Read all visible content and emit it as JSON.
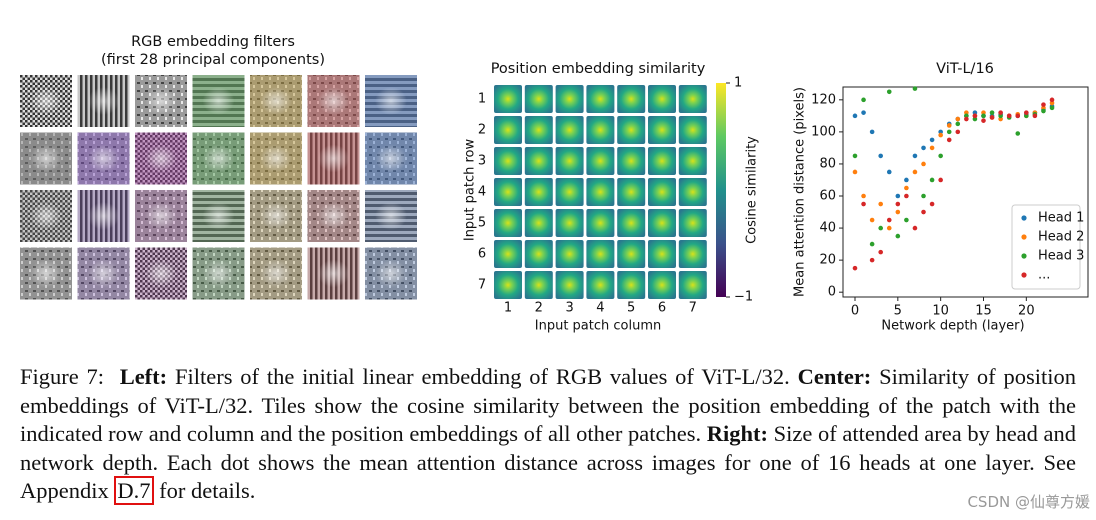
{
  "left_panel": {
    "title_lines": [
      "RGB embedding filters",
      "(first 28 principal components)"
    ]
  },
  "center_panel": {
    "title": "Position embedding similarity",
    "y_label": "Input patch row",
    "x_label": "Input patch column",
    "rows": [
      1,
      2,
      3,
      4,
      5,
      6,
      7
    ],
    "columns": [
      1,
      2,
      3,
      4,
      5,
      6,
      7
    ],
    "colorbar": {
      "label": "Cosine similarity",
      "lim": [
        -1,
        1
      ],
      "ticks": [
        1,
        {
          "value": -1,
          "label": "−1"
        }
      ]
    }
  },
  "chart_data": {
    "type": "scatter",
    "title": "ViT-L/16",
    "x_label": "Network depth (layer)",
    "y_label": "Mean attention distance (pixels)",
    "x": [
      0,
      1,
      2,
      3,
      4,
      5,
      6,
      7,
      8,
      9,
      10,
      11,
      12,
      13,
      14,
      15,
      16,
      17,
      18,
      19,
      20,
      21,
      22,
      23
    ],
    "series": [
      {
        "name": "Head 1",
        "color": "#1f77b4",
        "values": [
          110,
          112,
          100,
          85,
          75,
          60,
          70,
          85,
          90,
          95,
          100,
          105,
          108,
          110,
          112,
          110,
          110,
          111,
          110,
          110,
          111,
          112,
          114,
          116
        ]
      },
      {
        "name": "Head 2",
        "color": "#ff7f0e",
        "values": [
          75,
          60,
          45,
          55,
          40,
          50,
          65,
          75,
          80,
          90,
          98,
          104,
          108,
          112,
          110,
          112,
          109,
          108,
          110,
          111,
          110,
          112,
          115,
          118
        ]
      },
      {
        "name": "Head 3",
        "color": "#2ca02c",
        "values": [
          85,
          120,
          30,
          40,
          125,
          35,
          45,
          127,
          60,
          70,
          85,
          100,
          105,
          110,
          108,
          110,
          112,
          110,
          109,
          99,
          110,
          111,
          113,
          115
        ]
      },
      {
        "name": "...",
        "color": "#d62728",
        "values": [
          15,
          55,
          20,
          25,
          45,
          55,
          60,
          40,
          50,
          55,
          70,
          95,
          100,
          108,
          110,
          107,
          109,
          112,
          110,
          110,
          112,
          110,
          117,
          120
        ]
      }
    ],
    "xlim": [
      -1.4,
      27.2
    ],
    "ylim": [
      -3,
      128
    ],
    "xticks": [
      0,
      5,
      10,
      15,
      20
    ],
    "yticks": [
      0,
      20,
      40,
      60,
      80,
      100,
      120
    ],
    "legend": "lower right",
    "grid": false
  },
  "caption": {
    "segments": [
      {
        "text": "Figure 7:"
      },
      {
        "text": "Left:",
        "bold": true
      },
      {
        "text": "Filters of the initial linear embedding of RGB values of ViT-L/32."
      },
      {
        "text": "Center:",
        "bold": true
      },
      {
        "text": "Similarity of position embeddings of ViT-L/32. Tiles show the cosine similarity between the position embedding of the patch with the indicated row and column and the position embeddings of all other patches."
      },
      {
        "text": "Right:",
        "bold": true
      },
      {
        "text": "Size of attended area by head and network depth. Each dot shows the mean attention distance across images for one of 16 heads at one layer. See Appendix"
      },
      {
        "text": "D.7",
        "boxed": true
      },
      {
        "text": "for details."
      }
    ]
  },
  "watermark": "CSDN @仙尊方媛"
}
